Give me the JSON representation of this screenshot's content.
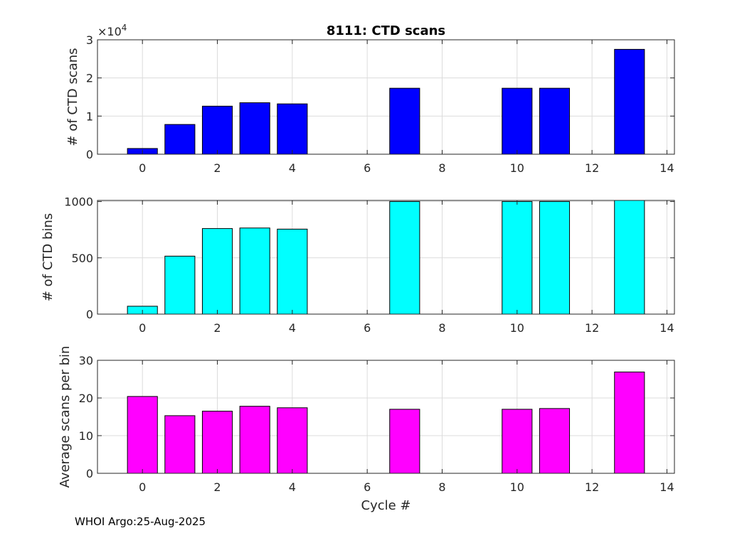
{
  "chart_data": [
    {
      "type": "bar",
      "title": "8111: CTD scans",
      "xlabel": "",
      "ylabel": "# of CTD scans",
      "y_exponent_label": "×10",
      "y_exponent_power": "4",
      "x": [
        0,
        1,
        2,
        3,
        4,
        7,
        10,
        11,
        13
      ],
      "values": [
        1500,
        7800,
        12600,
        13500,
        13200,
        17300,
        17300,
        17300,
        27500
      ],
      "xlim": [
        -1.2,
        14.2
      ],
      "ylim": [
        0,
        30000
      ],
      "xticks": [
        0,
        2,
        4,
        6,
        8,
        10,
        12,
        14
      ],
      "yticks": [
        0,
        10000,
        20000,
        30000
      ],
      "ytick_labels": [
        "0",
        "1",
        "2",
        "3"
      ],
      "color": "#0000ff",
      "grid": true
    },
    {
      "type": "bar",
      "title": "",
      "xlabel": "",
      "ylabel": "# of CTD bins",
      "x": [
        0,
        1,
        2,
        3,
        4,
        7,
        10,
        11,
        13
      ],
      "values": [
        70,
        515,
        760,
        765,
        755,
        1000,
        1000,
        1000,
        1010
      ],
      "xlim": [
        -1.2,
        14.2
      ],
      "ylim": [
        0,
        1010
      ],
      "xticks": [
        0,
        2,
        4,
        6,
        8,
        10,
        12,
        14
      ],
      "yticks": [
        0,
        500,
        1000
      ],
      "ytick_labels": [
        "0",
        "500",
        "1000"
      ],
      "color": "#00ffff",
      "grid": true
    },
    {
      "type": "bar",
      "title": "",
      "xlabel": "Cycle #",
      "ylabel": "Average scans per bin",
      "x": [
        0,
        1,
        2,
        3,
        4,
        7,
        10,
        11,
        13
      ],
      "values": [
        20.4,
        15.3,
        16.5,
        17.8,
        17.4,
        17.0,
        17.0,
        17.2,
        26.9
      ],
      "xlim": [
        -1.2,
        14.2
      ],
      "ylim": [
        0,
        30
      ],
      "xticks": [
        0,
        2,
        4,
        6,
        8,
        10,
        12,
        14
      ],
      "yticks": [
        0,
        10,
        20,
        30
      ],
      "ytick_labels": [
        "0",
        "10",
        "20",
        "30"
      ],
      "color": "#ff00ff",
      "grid": true
    }
  ],
  "footer": "WHOI Argo:25-Aug-2025"
}
